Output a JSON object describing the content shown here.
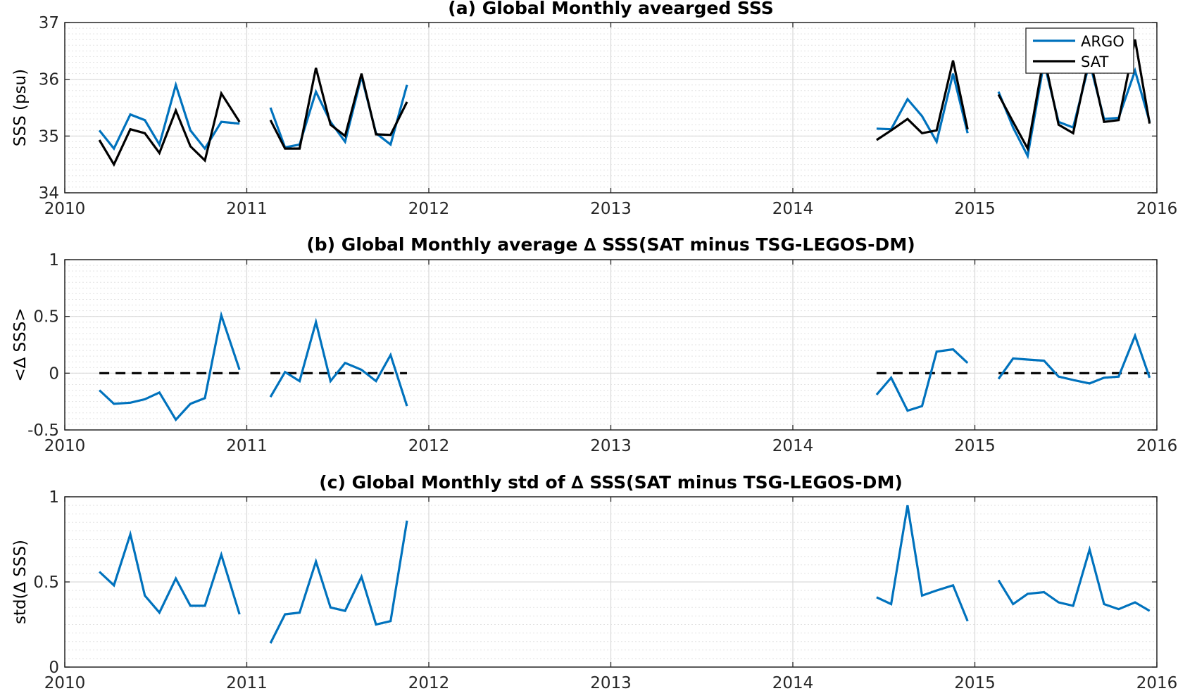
{
  "colors": {
    "argo": "#0072BD",
    "sat": "#000000",
    "zero_line": "#000000",
    "grid": "#d9d9d9"
  },
  "chart_data": [
    {
      "id": "a",
      "type": "line",
      "title": "(a) Global Monthly avearged SSS",
      "xlabel": "",
      "ylabel": "SSS (psu)",
      "xlim": [
        2010,
        2016
      ],
      "ylim": [
        34,
        37
      ],
      "xticks": [
        2010,
        2011,
        2012,
        2013,
        2014,
        2015,
        2016
      ],
      "xtick_labels": [
        "2010",
        "2011",
        "2012",
        "2013",
        "2014",
        "2015",
        "2016"
      ],
      "yticks": [
        34,
        35,
        36,
        37
      ],
      "ytick_labels": [
        "34",
        "35",
        "36",
        "37"
      ],
      "grid": true,
      "legend": "top-right",
      "series": [
        {
          "name": "ARGO",
          "color": "#0072BD",
          "segments": [
            {
              "x": [
                2010.19,
                2010.27,
                2010.36,
                2010.44,
                2010.52,
                2010.61,
                2010.69,
                2010.77,
                2010.86,
                2010.96
              ],
              "y": [
                35.1,
                34.78,
                35.38,
                35.28,
                34.85,
                35.9,
                35.1,
                34.78,
                35.25,
                35.22
              ]
            },
            {
              "x": [
                2011.13,
                2011.21,
                2011.29,
                2011.38,
                2011.46,
                2011.54,
                2011.63,
                2011.71,
                2011.79,
                2011.88
              ],
              "y": [
                35.5,
                34.8,
                34.85,
                35.78,
                35.25,
                34.9,
                36.05,
                35.05,
                34.85,
                35.9
              ]
            },
            {
              "x": [
                2014.46,
                2014.54,
                2014.63,
                2014.71,
                2014.79,
                2014.88,
                2014.96
              ],
              "y": [
                35.13,
                35.12,
                35.65,
                35.35,
                34.9,
                36.1,
                35.05
              ]
            },
            {
              "x": [
                2015.13,
                2015.21,
                2015.29,
                2015.38,
                2015.46,
                2015.54,
                2015.63,
                2015.71,
                2015.79,
                2015.88,
                2015.96
              ],
              "y": [
                35.78,
                35.15,
                34.65,
                36.3,
                35.25,
                35.15,
                36.3,
                35.3,
                35.32,
                36.15,
                35.25
              ]
            }
          ]
        },
        {
          "name": "SAT",
          "color": "#000000",
          "segments": [
            {
              "x": [
                2010.19,
                2010.27,
                2010.36,
                2010.44,
                2010.52,
                2010.61,
                2010.69,
                2010.77,
                2010.86,
                2010.96
              ],
              "y": [
                34.93,
                34.5,
                35.12,
                35.05,
                34.7,
                35.45,
                34.82,
                34.57,
                35.75,
                35.25
              ]
            },
            {
              "x": [
                2011.13,
                2011.21,
                2011.29,
                2011.38,
                2011.46,
                2011.54,
                2011.63,
                2011.71,
                2011.79,
                2011.88
              ],
              "y": [
                35.28,
                34.78,
                34.78,
                36.2,
                35.2,
                35.0,
                36.1,
                35.03,
                35.02,
                35.6
              ]
            },
            {
              "x": [
                2014.46,
                2014.54,
                2014.63,
                2014.71,
                2014.79,
                2014.88,
                2014.96
              ],
              "y": [
                34.93,
                35.1,
                35.3,
                35.05,
                35.1,
                36.33,
                35.12
              ]
            },
            {
              "x": [
                2015.13,
                2015.21,
                2015.29,
                2015.38,
                2015.46,
                2015.54,
                2015.63,
                2015.71,
                2015.79,
                2015.88,
                2015.96
              ],
              "y": [
                35.73,
                35.25,
                34.78,
                36.4,
                35.2,
                35.05,
                36.4,
                35.25,
                35.28,
                36.7,
                35.22
              ]
            }
          ]
        }
      ]
    },
    {
      "id": "b",
      "type": "line",
      "title": "(b) Global Monthly average ∆ SSS(SAT minus TSG-LEGOS-DM)",
      "xlabel": "",
      "ylabel": "<∆ SSS>",
      "xlim": [
        2010,
        2016
      ],
      "ylim": [
        -0.5,
        1
      ],
      "xticks": [
        2010,
        2011,
        2012,
        2013,
        2014,
        2015,
        2016
      ],
      "xtick_labels": [
        "2010",
        "2011",
        "2012",
        "2013",
        "2014",
        "2015",
        "2016"
      ],
      "yticks": [
        -0.5,
        0,
        0.5,
        1
      ],
      "ytick_labels": [
        "-0.5",
        "0",
        "0.5",
        "1"
      ],
      "grid": true,
      "zero_line_segments": [
        [
          2010.19,
          2010.96
        ],
        [
          2011.13,
          2011.88
        ],
        [
          2014.46,
          2014.96
        ],
        [
          2015.13,
          2015.96
        ]
      ],
      "series": [
        {
          "color": "#0072BD",
          "segments": [
            {
              "x": [
                2010.19,
                2010.27,
                2010.36,
                2010.44,
                2010.52,
                2010.61,
                2010.69,
                2010.77,
                2010.86,
                2010.96
              ],
              "y": [
                -0.15,
                -0.27,
                -0.26,
                -0.23,
                -0.17,
                -0.41,
                -0.27,
                -0.22,
                0.51,
                0.03
              ]
            },
            {
              "x": [
                2011.13,
                2011.21,
                2011.29,
                2011.38,
                2011.46,
                2011.54,
                2011.63,
                2011.71,
                2011.79,
                2011.88
              ],
              "y": [
                -0.21,
                0.01,
                -0.07,
                0.45,
                -0.07,
                0.09,
                0.03,
                -0.07,
                0.16,
                -0.29
              ]
            },
            {
              "x": [
                2014.46,
                2014.54,
                2014.63,
                2014.71,
                2014.79,
                2014.88,
                2014.96
              ],
              "y": [
                -0.19,
                -0.04,
                -0.33,
                -0.29,
                0.19,
                0.21,
                0.09
              ]
            },
            {
              "x": [
                2015.13,
                2015.21,
                2015.29,
                2015.38,
                2015.46,
                2015.54,
                2015.63,
                2015.71,
                2015.79,
                2015.88,
                2015.96
              ],
              "y": [
                -0.05,
                0.13,
                0.12,
                0.11,
                -0.03,
                -0.06,
                -0.09,
                -0.04,
                -0.03,
                0.33,
                -0.04
              ]
            }
          ]
        }
      ]
    },
    {
      "id": "c",
      "type": "line",
      "title": "(c) Global Monthly std of ∆ SSS(SAT minus TSG-LEGOS-DM)",
      "xlabel": "",
      "ylabel": "std(∆ SSS)",
      "xlim": [
        2010,
        2016
      ],
      "ylim": [
        0,
        1
      ],
      "xticks": [
        2010,
        2011,
        2012,
        2013,
        2014,
        2015,
        2016
      ],
      "xtick_labels": [
        "2010",
        "2011",
        "2012",
        "2013",
        "2014",
        "2015",
        "2016"
      ],
      "yticks": [
        0,
        0.5,
        1
      ],
      "ytick_labels": [
        "0",
        "0.5",
        "1"
      ],
      "grid": true,
      "series": [
        {
          "color": "#0072BD",
          "segments": [
            {
              "x": [
                2010.19,
                2010.27,
                2010.36,
                2010.44,
                2010.52,
                2010.61,
                2010.69,
                2010.77,
                2010.86,
                2010.96
              ],
              "y": [
                0.56,
                0.48,
                0.78,
                0.42,
                0.32,
                0.52,
                0.36,
                0.36,
                0.66,
                0.31
              ]
            },
            {
              "x": [
                2011.13,
                2011.21,
                2011.29,
                2011.38,
                2011.46,
                2011.54,
                2011.63,
                2011.71,
                2011.79,
                2011.88
              ],
              "y": [
                0.14,
                0.31,
                0.32,
                0.62,
                0.35,
                0.33,
                0.53,
                0.25,
                0.27,
                0.86
              ]
            },
            {
              "x": [
                2014.46,
                2014.54,
                2014.63,
                2014.71,
                2014.79,
                2014.88,
                2014.96
              ],
              "y": [
                0.41,
                0.37,
                0.95,
                0.42,
                0.45,
                0.48,
                0.27
              ]
            },
            {
              "x": [
                2015.13,
                2015.21,
                2015.29,
                2015.38,
                2015.46,
                2015.54,
                2015.63,
                2015.71,
                2015.79,
                2015.88,
                2015.96
              ],
              "y": [
                0.51,
                0.37,
                0.43,
                0.44,
                0.38,
                0.36,
                0.69,
                0.37,
                0.34,
                0.38,
                0.33
              ]
            }
          ]
        }
      ]
    }
  ]
}
